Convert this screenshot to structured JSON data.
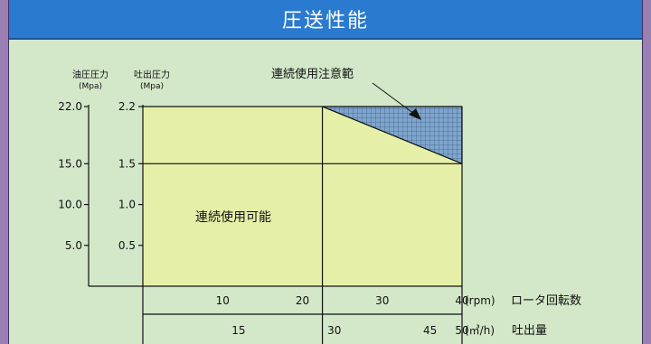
{
  "header": {
    "title": "圧送性能"
  },
  "chart_data": {
    "type": "area",
    "title": "圧送性能",
    "axes": {
      "oil_pressure": {
        "label_line1": "油圧圧力",
        "label_line2": "(Mpa)",
        "ticks": [
          "22.0",
          "15.0",
          "10.0",
          "5.0"
        ],
        "tick_values": [
          22.0,
          15.0,
          10.0,
          5.0
        ],
        "range": [
          0,
          22.0
        ]
      },
      "discharge_pressure": {
        "label_line1": "吐出圧力",
        "label_line2": "(Mpa)",
        "ticks": [
          "2.2",
          "1.5",
          "1.0",
          "0.5"
        ],
        "tick_values": [
          2.2,
          1.5,
          1.0,
          0.5
        ],
        "range": [
          0,
          2.2
        ]
      },
      "rpm": {
        "ticks": [
          "10",
          "20",
          "30",
          "40"
        ],
        "tick_values": [
          10,
          20,
          30,
          40
        ],
        "unit": "(rpm)",
        "label": "ロータ回転数",
        "range": [
          0,
          40
        ]
      },
      "flow": {
        "ticks": [
          "15",
          "30",
          "45",
          "50"
        ],
        "tick_values": [
          15,
          30,
          45,
          50
        ],
        "unit": "(㎥/h)",
        "label": "吐出量",
        "range": [
          0,
          50
        ]
      }
    },
    "regions": [
      {
        "label": "連続使用可能",
        "color": "#e6efa8",
        "polygon_rpm_mpa": [
          [
            0,
            0
          ],
          [
            0,
            2.2
          ],
          [
            22.5,
            2.2
          ],
          [
            40,
            1.5
          ],
          [
            40,
            0
          ]
        ]
      },
      {
        "label": "連続使用注意範",
        "color": "#7fa5cc",
        "polygon_rpm_mpa": [
          [
            22.5,
            2.2
          ],
          [
            40,
            2.2
          ],
          [
            40,
            1.5
          ]
        ]
      }
    ],
    "reference_lines": {
      "discharge_mpa": [
        2.2,
        1.5
      ],
      "rpm": 22.5
    },
    "grid": false
  }
}
